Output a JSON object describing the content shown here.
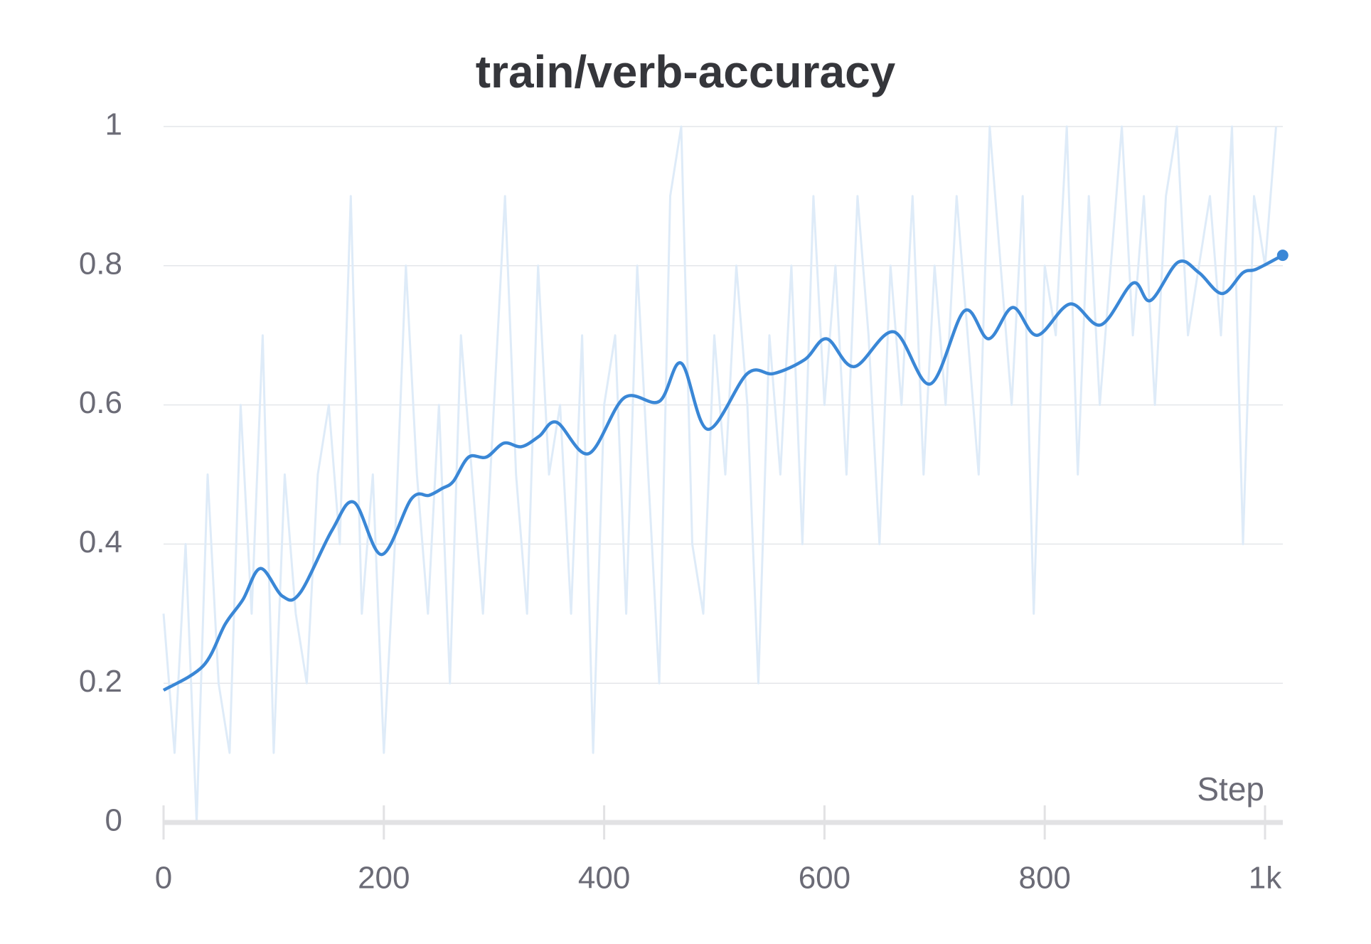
{
  "chart_data": {
    "type": "line",
    "title": "train/verb-accuracy",
    "x_label": "Step",
    "xlim": [
      0,
      1016
    ],
    "xticks": [
      0,
      200,
      400,
      600,
      800,
      {
        "value": 1000,
        "label": "1k"
      }
    ],
    "ylim": [
      0,
      1
    ],
    "yticks": [
      0,
      0.2,
      0.4,
      0.6,
      0.8,
      1
    ],
    "grid": true,
    "series": [
      {
        "color": "#deebf8",
        "role": "raw",
        "x": [
          0,
          10,
          20,
          30,
          40,
          50,
          60,
          70,
          80,
          90,
          100,
          110,
          120,
          130,
          140,
          150,
          160,
          170,
          180,
          190,
          200,
          210,
          220,
          230,
          240,
          250,
          260,
          270,
          280,
          290,
          300,
          310,
          320,
          330,
          340,
          350,
          360,
          370,
          380,
          390,
          400,
          410,
          420,
          430,
          440,
          450,
          460,
          470,
          480,
          490,
          500,
          510,
          520,
          530,
          540,
          550,
          560,
          570,
          580,
          590,
          600,
          610,
          620,
          630,
          640,
          650,
          660,
          670,
          680,
          690,
          700,
          710,
          720,
          730,
          740,
          750,
          760,
          770,
          780,
          790,
          800,
          810,
          820,
          830,
          840,
          850,
          860,
          870,
          880,
          890,
          900,
          910,
          920,
          930,
          940,
          950,
          960,
          970,
          980,
          990,
          1000,
          1010
        ],
        "values": [
          0.3,
          0.1,
          0.4,
          0,
          0.5,
          0.2,
          0.1,
          0.6,
          0.3,
          0.7,
          0.1,
          0.5,
          0.3,
          0.2,
          0.5,
          0.6,
          0.4,
          0.9,
          0.3,
          0.5,
          0.1,
          0.4,
          0.8,
          0.5,
          0.3,
          0.6,
          0.2,
          0.7,
          0.5,
          0.3,
          0.6,
          0.9,
          0.5,
          0.3,
          0.8,
          0.5,
          0.6,
          0.3,
          0.7,
          0.1,
          0.6,
          0.7,
          0.3,
          0.8,
          0.5,
          0.2,
          0.9,
          1,
          0.4,
          0.3,
          0.7,
          0.5,
          0.8,
          0.6,
          0.2,
          0.7,
          0.5,
          0.8,
          0.4,
          0.9,
          0.6,
          0.8,
          0.5,
          0.9,
          0.7,
          0.4,
          0.8,
          0.6,
          0.9,
          0.5,
          0.8,
          0.6,
          0.9,
          0.7,
          0.5,
          1,
          0.8,
          0.6,
          0.9,
          0.3,
          0.8,
          0.7,
          1,
          0.5,
          0.9,
          0.6,
          0.8,
          1,
          0.7,
          0.9,
          0.6,
          0.9,
          1,
          0.7,
          0.8,
          0.9,
          0.7,
          1,
          0.4,
          0.9,
          0.8,
          1
        ]
      },
      {
        "color": "#3a87d6",
        "role": "smoothed",
        "x": [
          0,
          36,
          56,
          72,
          88,
          108,
          124,
          153,
          173,
          198,
          225,
          241,
          253,
          263,
          277,
          293,
          309,
          325,
          341,
          357,
          386,
          418,
          450,
          470,
          494,
          530,
          554,
          582,
          602,
          627,
          663,
          696,
          727,
          749,
          771,
          793,
          823,
          851,
          880,
          896,
          921,
          940,
          961,
          980,
          992,
          1016
        ],
        "values": [
          0.19,
          0.225,
          0.285,
          0.32,
          0.365,
          0.325,
          0.33,
          0.42,
          0.46,
          0.385,
          0.465,
          0.47,
          0.48,
          0.49,
          0.525,
          0.525,
          0.545,
          0.54,
          0.555,
          0.575,
          0.53,
          0.61,
          0.605,
          0.66,
          0.565,
          0.645,
          0.645,
          0.665,
          0.695,
          0.655,
          0.705,
          0.63,
          0.735,
          0.695,
          0.74,
          0.7,
          0.745,
          0.715,
          0.775,
          0.75,
          0.805,
          0.79,
          0.76,
          0.79,
          0.795,
          0.815
        ]
      }
    ]
  }
}
